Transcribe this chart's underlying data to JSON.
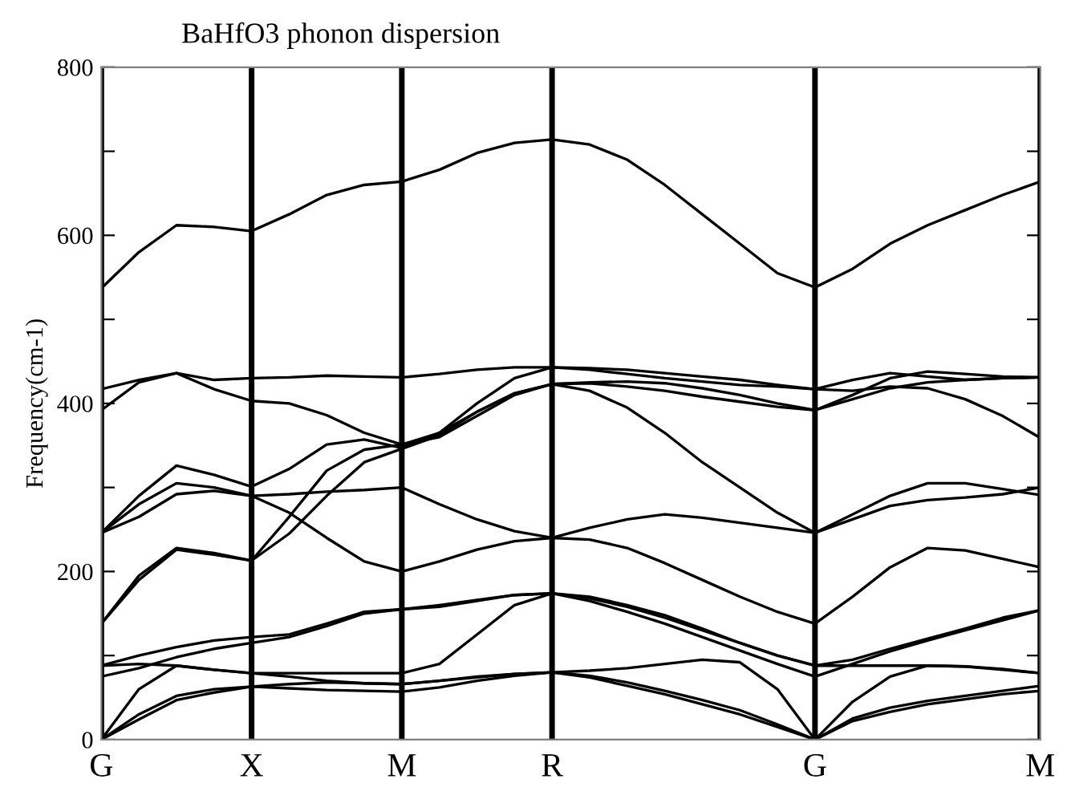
{
  "chart_data": {
    "type": "line",
    "title": "BaHfO3 phonon dispersion",
    "ylabel": "Frequency(cm-1)",
    "categories": [
      "G",
      null,
      null,
      null,
      "X",
      null,
      null,
      null,
      "M",
      null,
      null,
      null,
      "R",
      null,
      null,
      null,
      null,
      null,
      null,
      "G",
      null,
      null,
      null,
      null,
      null,
      "M"
    ],
    "ylim": [
      0,
      800
    ],
    "yticks": [
      0,
      {
        "value": 100,
        "label": null
      },
      200,
      {
        "value": 300,
        "label": null
      },
      400,
      {
        "value": 500,
        "label": null
      },
      600,
      {
        "value": 700,
        "label": null
      },
      800
    ],
    "grid": "x",
    "series": [
      {
        "color": "#000000",
        "values": [
          537,
          580,
          612,
          610,
          605,
          625,
          648,
          660,
          664,
          678,
          698,
          710,
          714,
          708,
          690,
          660,
          625,
          590,
          555,
          538,
          560,
          590,
          612,
          630,
          648,
          664
        ]
      },
      {
        "color": "#000000",
        "values": [
          417,
          428,
          436,
          428,
          430,
          431,
          433,
          432,
          431,
          435,
          440,
          443,
          443,
          442,
          440,
          436,
          432,
          428,
          422,
          417,
          428,
          436,
          432,
          428,
          430,
          431
        ]
      },
      {
        "color": "#000000",
        "values": [
          392,
          425,
          436,
          417,
          403,
          400,
          386,
          365,
          351,
          365,
          390,
          412,
          423,
          425,
          426,
          424,
          418,
          410,
          400,
          392,
          410,
          430,
          438,
          435,
          432,
          431
        ]
      },
      {
        "color": "#000000",
        "values": [
          246,
          290,
          326,
          315,
          301,
          322,
          351,
          357,
          347,
          365,
          400,
          430,
          443,
          440,
          435,
          430,
          426,
          422,
          420,
          417,
          415,
          420,
          418,
          405,
          385,
          359
        ]
      },
      {
        "color": "#000000",
        "values": [
          246,
          280,
          305,
          300,
          290,
          292,
          295,
          297,
          300,
          280,
          262,
          248,
          240,
          252,
          262,
          268,
          264,
          258,
          252,
          246,
          262,
          278,
          285,
          288,
          292,
          300
        ]
      },
      {
        "color": "#000000",
        "values": [
          138,
          190,
          226,
          220,
          213,
          245,
          290,
          330,
          346,
          362,
          390,
          412,
          423,
          415,
          395,
          365,
          330,
          300,
          270,
          246,
          268,
          290,
          305,
          305,
          298,
          291
        ]
      },
      {
        "color": "#000000",
        "values": [
          246,
          265,
          292,
          296,
          290,
          270,
          240,
          212,
          200,
          212,
          226,
          236,
          240,
          238,
          228,
          210,
          190,
          170,
          152,
          138,
          170,
          205,
          228,
          225,
          215,
          205
        ]
      },
      {
        "color": "#000000",
        "values": [
          138,
          195,
          228,
          222,
          213,
          265,
          320,
          345,
          351,
          360,
          385,
          410,
          423,
          424,
          420,
          415,
          408,
          402,
          396,
          392,
          405,
          418,
          425,
          428,
          430,
          431
        ]
      },
      {
        "color": "#000000",
        "values": [
          88,
          100,
          110,
          118,
          122,
          125,
          138,
          152,
          155,
          158,
          165,
          172,
          174,
          168,
          158,
          145,
          130,
          115,
          100,
          88,
          95,
          108,
          120,
          132,
          145,
          154
        ]
      },
      {
        "color": "#000000",
        "values": [
          75,
          85,
          98,
          108,
          115,
          122,
          135,
          150,
          155,
          160,
          166,
          172,
          174,
          165,
          152,
          138,
          122,
          106,
          90,
          75,
          90,
          105,
          118,
          130,
          142,
          154
        ]
      },
      {
        "color": "#000000",
        "values": [
          88,
          90,
          88,
          83,
          79,
          79,
          79,
          79,
          79,
          90,
          125,
          160,
          174,
          170,
          160,
          148,
          132,
          115,
          100,
          88,
          88,
          88,
          88,
          87,
          84,
          79
        ]
      },
      {
        "color": "#000000",
        "values": [
          0,
          60,
          88,
          83,
          79,
          75,
          70,
          67,
          66,
          70,
          74,
          78,
          80,
          82,
          85,
          90,
          95,
          92,
          60,
          0,
          45,
          75,
          88,
          87,
          83,
          79
        ]
      },
      {
        "color": "#000000",
        "values": [
          0,
          24,
          47,
          56,
          63,
          61,
          59,
          58,
          57,
          62,
          70,
          76,
          80,
          74,
          64,
          54,
          42,
          30,
          15,
          0,
          25,
          38,
          46,
          52,
          58,
          64
        ]
      },
      {
        "color": "#000000",
        "values": [
          0,
          30,
          52,
          60,
          63,
          66,
          68,
          67,
          66,
          70,
          75,
          78,
          80,
          76,
          68,
          58,
          47,
          35,
          18,
          0,
          22,
          33,
          42,
          48,
          54,
          58
        ]
      }
    ]
  }
}
